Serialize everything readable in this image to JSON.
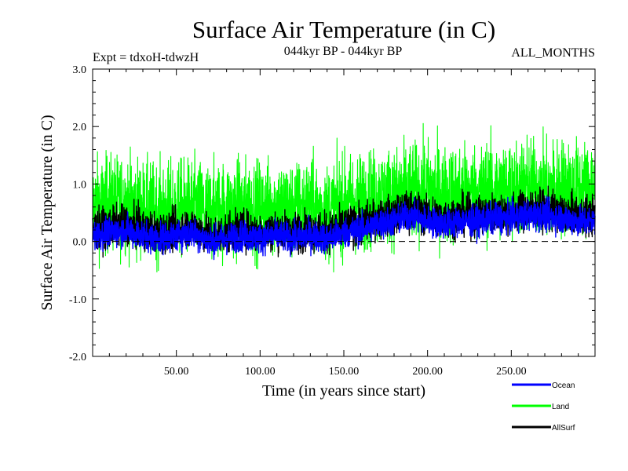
{
  "title": "Surface Air Temperature (in C)",
  "experiment_label": "Expt = tdxoH-tdwzH",
  "period_label": "044kyr BP - 044kyr BP",
  "season_label": "ALL_MONTHS",
  "colors": {
    "ocean": "#0000ff",
    "land": "#00ff00",
    "allsurf": "#000000"
  },
  "chart_data": {
    "type": "line",
    "title": "Surface Air Temperature (in C)",
    "xlabel": "Time (in years since start)",
    "ylabel": "Surface Air Temperature (in C)",
    "xlim": [
      0,
      300
    ],
    "ylim": [
      -2.0,
      3.0
    ],
    "x_ticks": [
      50,
      100,
      150,
      200,
      250
    ],
    "x_tick_labels": [
      "50.00",
      "100.00",
      "150.00",
      "200.00",
      "250.00"
    ],
    "y_ticks": [
      -2.0,
      -1.0,
      0.0,
      1.0,
      2.0,
      3.0
    ],
    "y_tick_labels": [
      "-2.0",
      "-1.0",
      "0.0",
      "1.0",
      "2.0",
      "3.0"
    ],
    "reference_line": 0.0,
    "legend_position": "bottom-right",
    "x": [
      0,
      10,
      20,
      30,
      40,
      50,
      60,
      70,
      80,
      90,
      100,
      110,
      120,
      130,
      140,
      150,
      160,
      170,
      180,
      190,
      200,
      210,
      220,
      230,
      240,
      250,
      260,
      270,
      280,
      290,
      300
    ],
    "series": [
      {
        "name": "Land",
        "key": "land",
        "values": [
          0.6,
          0.65,
          0.65,
          0.55,
          0.5,
          0.55,
          0.6,
          0.5,
          0.55,
          0.6,
          0.55,
          0.6,
          0.55,
          0.6,
          0.5,
          0.65,
          0.7,
          0.75,
          0.8,
          0.85,
          0.9,
          0.8,
          0.85,
          0.85,
          0.9,
          0.9,
          0.95,
          0.9,
          0.95,
          0.9,
          0.95
        ]
      },
      {
        "name": "Ocean",
        "key": "ocean",
        "values": [
          0.1,
          0.15,
          0.2,
          0.1,
          0.05,
          0.1,
          0.15,
          0.0,
          0.05,
          0.1,
          0.05,
          0.1,
          0.05,
          0.1,
          0.05,
          0.15,
          0.2,
          0.3,
          0.35,
          0.45,
          0.35,
          0.3,
          0.35,
          0.35,
          0.4,
          0.4,
          0.45,
          0.45,
          0.4,
          0.35,
          0.35
        ]
      },
      {
        "name": "AllSurf",
        "key": "allsurf",
        "values": [
          0.2,
          0.25,
          0.3,
          0.2,
          0.15,
          0.2,
          0.25,
          0.1,
          0.15,
          0.2,
          0.15,
          0.2,
          0.15,
          0.2,
          0.15,
          0.25,
          0.3,
          0.4,
          0.45,
          0.55,
          0.45,
          0.4,
          0.45,
          0.45,
          0.5,
          0.5,
          0.55,
          0.55,
          0.5,
          0.45,
          0.45
        ]
      }
    ]
  }
}
